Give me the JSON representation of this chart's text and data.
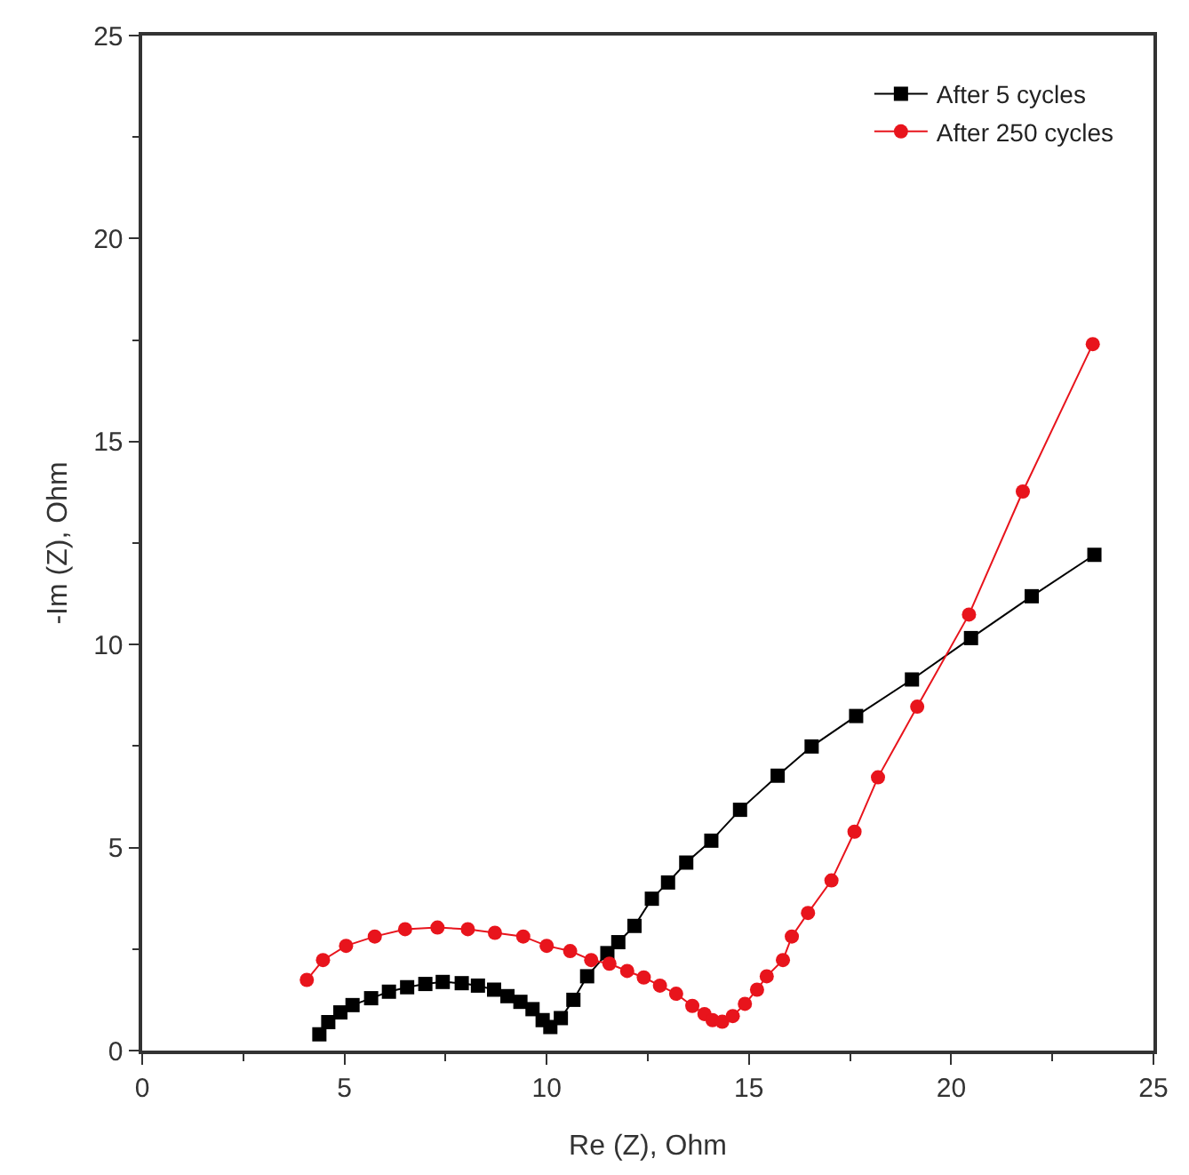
{
  "chart_data": {
    "type": "line",
    "xlabel": "Re (Z), Ohm",
    "ylabel": "-Im (Z), Ohm",
    "xlim": [
      0,
      25
    ],
    "ylim": [
      0,
      25
    ],
    "xticks": [
      0,
      5,
      10,
      15,
      20,
      25
    ],
    "yticks": [
      0,
      5,
      10,
      15,
      20,
      25
    ],
    "grid": false,
    "legend": "top right",
    "series": [
      {
        "name": "After 5 cycles",
        "color": "#000000",
        "marker": "square",
        "x": [
          4.38,
          4.6,
          4.9,
          5.2,
          5.66,
          6.1,
          6.55,
          7.0,
          7.43,
          7.9,
          8.3,
          8.7,
          9.03,
          9.35,
          9.65,
          9.9,
          10.09,
          10.35,
          10.66,
          11.0,
          11.5,
          11.77,
          12.17,
          12.6,
          13.0,
          13.45,
          14.07,
          14.78,
          15.71,
          16.55,
          17.65,
          19.03,
          20.49,
          21.99,
          23.54
        ],
        "values": [
          0.4,
          0.7,
          0.94,
          1.12,
          1.29,
          1.45,
          1.56,
          1.64,
          1.69,
          1.66,
          1.6,
          1.5,
          1.34,
          1.2,
          1.02,
          0.75,
          0.58,
          0.8,
          1.25,
          1.83,
          2.4,
          2.67,
          3.07,
          3.74,
          4.14,
          4.63,
          5.17,
          5.93,
          6.77,
          7.49,
          8.24,
          9.14,
          10.16,
          11.19,
          12.21
        ]
      },
      {
        "name": "After 250 cycles",
        "color": "#e8141c",
        "marker": "circle",
        "x": [
          4.07,
          4.47,
          5.04,
          5.75,
          6.5,
          7.3,
          8.05,
          8.72,
          9.42,
          10.0,
          10.58,
          11.1,
          11.55,
          11.99,
          12.4,
          12.8,
          13.2,
          13.6,
          13.9,
          14.1,
          14.34,
          14.6,
          14.9,
          15.2,
          15.44,
          15.84,
          16.06,
          16.46,
          17.04,
          17.61,
          18.19,
          19.16,
          20.44,
          21.77,
          23.5
        ],
        "values": [
          1.74,
          2.23,
          2.58,
          2.81,
          2.99,
          3.03,
          2.99,
          2.9,
          2.81,
          2.58,
          2.45,
          2.23,
          2.14,
          1.96,
          1.8,
          1.6,
          1.4,
          1.1,
          0.9,
          0.75,
          0.71,
          0.85,
          1.15,
          1.5,
          1.83,
          2.23,
          2.81,
          3.39,
          4.19,
          5.39,
          6.73,
          8.47,
          10.74,
          13.77,
          17.4
        ]
      }
    ]
  }
}
